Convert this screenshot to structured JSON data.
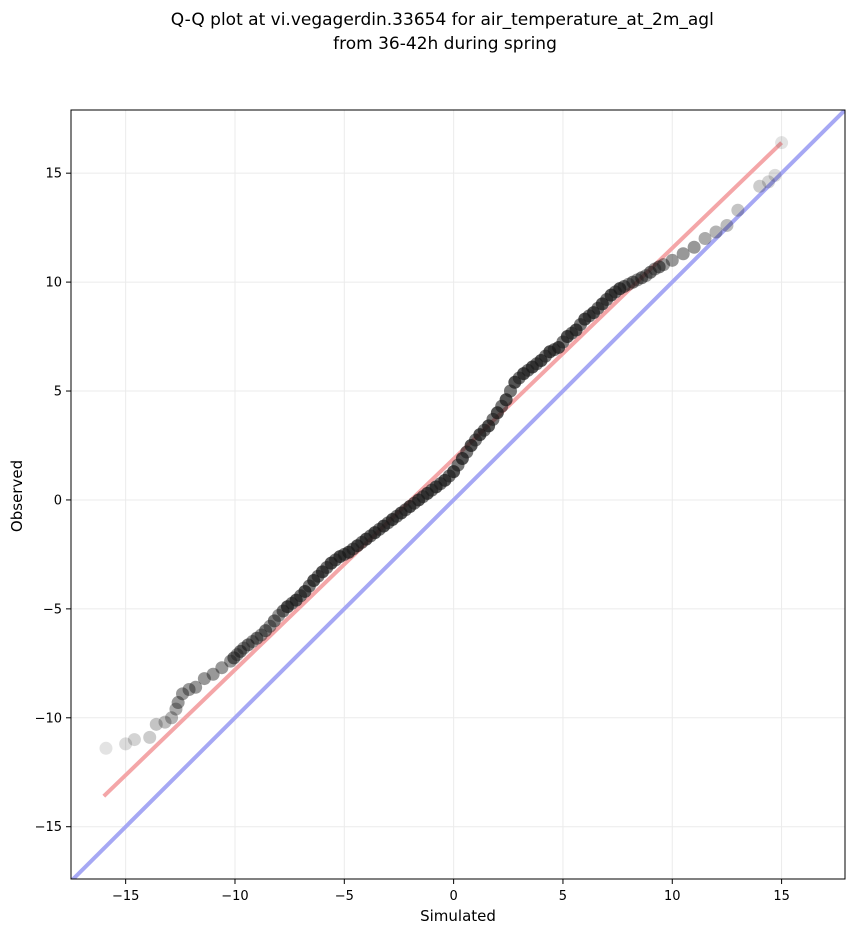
{
  "chart_data": {
    "type": "scatter",
    "title": "Q-Q plot at vi.vegagerdin.33654 for air_temperature_at_2m_agl\nfrom 36-42h during spring",
    "xlabel": "Simulated",
    "ylabel": "Observed",
    "xlim": [
      -17.5,
      17.9
    ],
    "ylim": [
      -17.4,
      17.9
    ],
    "xticks": [
      -15,
      -10,
      -5,
      0,
      5,
      10,
      15
    ],
    "yticks": [
      -15,
      -10,
      -5,
      0,
      5,
      10,
      15
    ],
    "xtick_labels": [
      "−15",
      "−10",
      "−5",
      "0",
      "5",
      "10",
      "15"
    ],
    "ytick_labels": [
      "−15",
      "−10",
      "−5",
      "0",
      "5",
      "10",
      "15"
    ],
    "grid": true,
    "quantile_points": {
      "x": [
        -15.9,
        -15.0,
        -14.6,
        -13.9,
        -13.6,
        -13.2,
        -12.9,
        -12.7,
        -12.6,
        -12.4,
        -12.1,
        -11.8,
        -11.4,
        -11.0,
        -10.6,
        -10.2,
        -9.9,
        -9.6,
        -9.2,
        -8.8,
        -8.4,
        -8.0,
        -7.6,
        -7.2,
        -6.8,
        -6.4,
        -6.0,
        -5.6,
        -5.2,
        -4.8,
        -4.4,
        -4.0,
        -3.6,
        -3.2,
        -2.8,
        -2.4,
        -2.0,
        -1.6,
        -1.2,
        -0.8,
        -0.4,
        0.0,
        0.4,
        0.8,
        1.2,
        1.6,
        2.0,
        2.4,
        2.8,
        3.2,
        3.6,
        4.0,
        4.4,
        4.8,
        5.2,
        5.6,
        6.0,
        6.4,
        6.8,
        7.2,
        7.6,
        8.0,
        8.4,
        8.8,
        9.2,
        9.6,
        10.0,
        10.5,
        11.0,
        11.5,
        12.0,
        12.5,
        13.0,
        14.0,
        14.4,
        14.7,
        15.0
      ],
      "y": [
        -11.4,
        -11.2,
        -11.0,
        -10.9,
        -10.3,
        -10.2,
        -10.0,
        -9.6,
        -9.3,
        -8.9,
        -8.7,
        -8.6,
        -8.2,
        -8.0,
        -7.7,
        -7.4,
        -7.1,
        -6.8,
        -6.5,
        -6.2,
        -5.8,
        -5.3,
        -4.9,
        -4.6,
        -4.2,
        -3.7,
        -3.3,
        -2.9,
        -2.6,
        -2.4,
        -2.1,
        -1.8,
        -1.5,
        -1.2,
        -0.9,
        -0.6,
        -0.3,
        0.0,
        0.3,
        0.6,
        0.9,
        1.3,
        1.9,
        2.5,
        3.0,
        3.4,
        4.0,
        4.6,
        5.4,
        5.8,
        6.1,
        6.4,
        6.8,
        7.0,
        7.5,
        7.8,
        8.3,
        8.6,
        9.0,
        9.4,
        9.7,
        9.9,
        10.1,
        10.3,
        10.6,
        10.8,
        11.0,
        11.3,
        11.6,
        12.0,
        12.3,
        12.6,
        13.3,
        14.4,
        14.6,
        14.9,
        16.4
      ]
    },
    "fit_line": {
      "x": [
        -16.0,
        15.0
      ],
      "y": [
        -13.6,
        16.4
      ],
      "color": "#f4a6a8"
    },
    "identity_line": {
      "x": [
        -17.5,
        17.9
      ],
      "y": [
        -17.5,
        17.9
      ],
      "color": "#a6a8f4"
    },
    "marker_color": "#1a1a1a"
  }
}
